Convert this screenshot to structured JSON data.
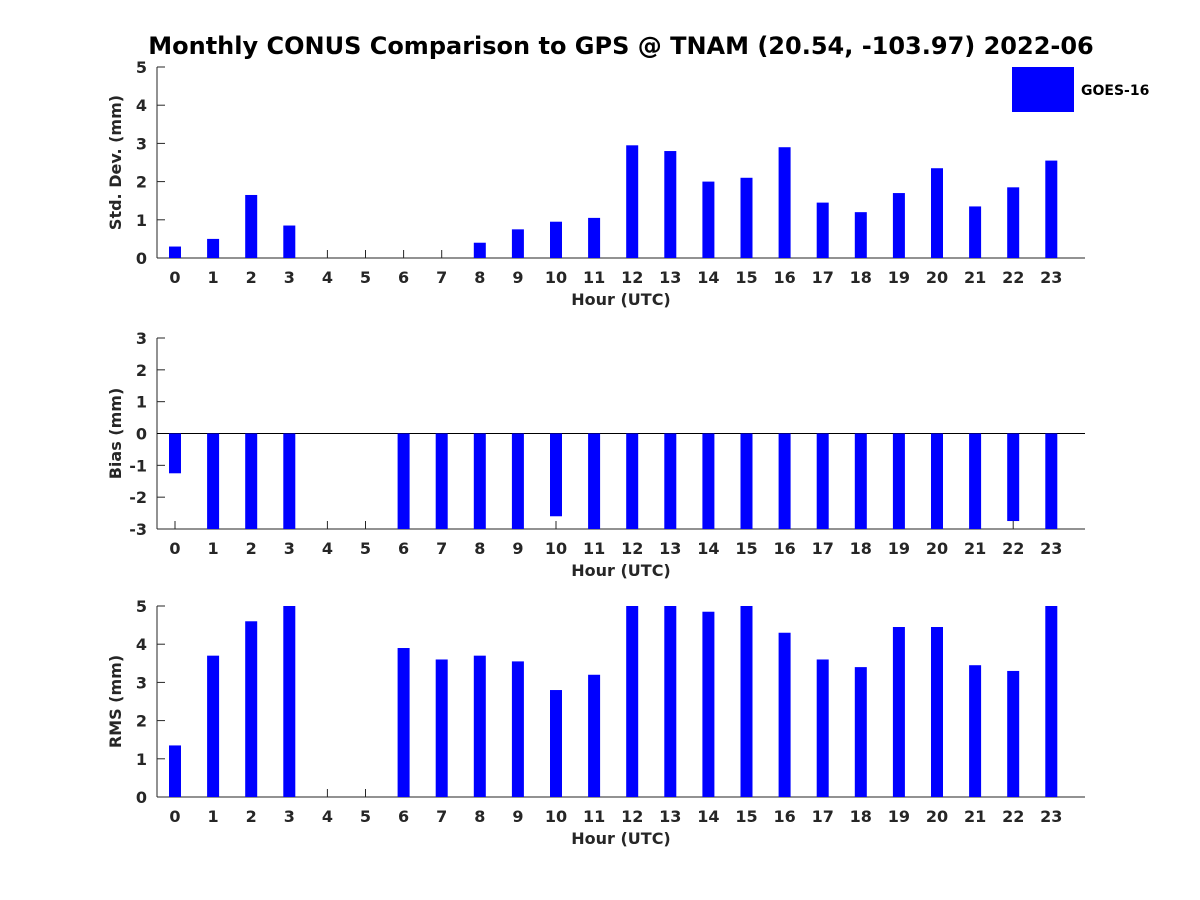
{
  "title": "Monthly CONUS Comparison to GPS @ TNAM (20.54, -103.97) 2022-06",
  "legend": {
    "label": "GOES-16",
    "color": "#0000ff"
  },
  "chart_data": [
    {
      "type": "bar",
      "categories": [
        "0",
        "1",
        "2",
        "3",
        "4",
        "5",
        "6",
        "7",
        "8",
        "9",
        "10",
        "11",
        "12",
        "13",
        "14",
        "15",
        "16",
        "17",
        "18",
        "19",
        "20",
        "21",
        "22",
        "23"
      ],
      "series": [
        {
          "name": "GOES-16",
          "values": [
            0.3,
            0.5,
            1.65,
            0.85,
            null,
            null,
            null,
            null,
            0.4,
            0.75,
            0.95,
            1.05,
            2.95,
            2.8,
            2.0,
            2.1,
            2.9,
            1.45,
            1.2,
            1.7,
            2.35,
            1.35,
            1.85,
            2.55
          ]
        }
      ],
      "xlabel": "Hour (UTC)",
      "ylabel": "Std. Dev. (mm)",
      "ylim": [
        0,
        5
      ],
      "yticks": [
        0,
        1,
        2,
        3,
        4,
        5
      ],
      "legend": "top-right",
      "grid": false
    },
    {
      "type": "bar",
      "categories": [
        "0",
        "1",
        "2",
        "3",
        "4",
        "5",
        "6",
        "7",
        "8",
        "9",
        "10",
        "11",
        "12",
        "13",
        "14",
        "15",
        "16",
        "17",
        "18",
        "19",
        "20",
        "21",
        "22",
        "23"
      ],
      "series": [
        {
          "name": "GOES-16",
          "values": [
            -1.25,
            -3,
            -3,
            -3,
            null,
            null,
            -3,
            -3,
            -3,
            -3,
            -2.6,
            -3,
            -3,
            -3,
            -3,
            -3,
            -3,
            -3,
            -3,
            -3,
            -3,
            -3,
            -2.75,
            -3
          ]
        }
      ],
      "xlabel": "Hour (UTC)",
      "ylabel": "Bias (mm)",
      "ylim": [
        -3,
        3
      ],
      "yticks": [
        -3,
        -2,
        -1,
        0,
        1,
        2,
        3
      ],
      "zero_line": true,
      "grid": false
    },
    {
      "type": "bar",
      "categories": [
        "0",
        "1",
        "2",
        "3",
        "4",
        "5",
        "6",
        "7",
        "8",
        "9",
        "10",
        "11",
        "12",
        "13",
        "14",
        "15",
        "16",
        "17",
        "18",
        "19",
        "20",
        "21",
        "22",
        "23"
      ],
      "series": [
        {
          "name": "GOES-16",
          "values": [
            1.35,
            3.7,
            4.6,
            5,
            null,
            null,
            3.9,
            3.6,
            3.7,
            3.55,
            2.8,
            3.2,
            5,
            5,
            4.85,
            5,
            4.3,
            3.6,
            3.4,
            4.45,
            4.45,
            3.45,
            3.3,
            5
          ]
        }
      ],
      "xlabel": "Hour (UTC)",
      "ylabel": "RMS (mm)",
      "ylim": [
        0,
        5
      ],
      "yticks": [
        0,
        1,
        2,
        3,
        4,
        5
      ],
      "grid": false
    }
  ]
}
